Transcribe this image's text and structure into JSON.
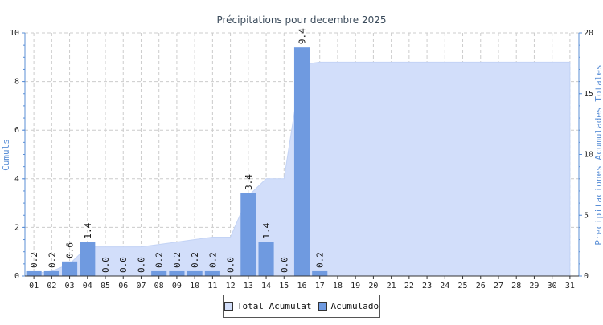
{
  "chart_data": {
    "type": "bar",
    "title": "Précipitations pour decembre 2025",
    "ylabel": "Cumuls",
    "y2label": "Precipitaciones Acumulades Totales",
    "ylim": [
      0,
      10
    ],
    "y2lim": [
      0,
      20
    ],
    "yticks": [
      "0",
      "2",
      "4",
      "6",
      "8",
      "10"
    ],
    "y2ticks": [
      "0",
      "5",
      "10",
      "15",
      "20"
    ],
    "grid": true,
    "legend_position": "bottom",
    "categories": [
      "01",
      "02",
      "03",
      "04",
      "05",
      "06",
      "07",
      "08",
      "09",
      "10",
      "11",
      "12",
      "13",
      "14",
      "15",
      "16",
      "17",
      "18",
      "19",
      "20",
      "21",
      "22",
      "23",
      "24",
      "25",
      "26",
      "27",
      "28",
      "29",
      "30",
      "31"
    ],
    "series": [
      {
        "name": "Acumulado",
        "type": "bar",
        "axis": "left",
        "color": "#6f9ae0",
        "values": [
          0.2,
          0.2,
          0.6,
          1.4,
          0.0,
          0.0,
          0.0,
          0.2,
          0.2,
          0.2,
          0.2,
          0.0,
          3.4,
          1.4,
          0.0,
          9.4,
          0.2,
          null,
          null,
          null,
          null,
          null,
          null,
          null,
          null,
          null,
          null,
          null,
          null,
          null,
          null
        ],
        "labels": [
          "0.2",
          "0.2",
          "0.6",
          "1.4",
          "0.0",
          "0.0",
          "0.0",
          "0.2",
          "0.2",
          "0.2",
          "0.2",
          "0.0",
          "3.4",
          "1.4",
          "0.0",
          "9.4",
          "0.2",
          "",
          "",
          "",
          "",
          "",
          "",
          "",
          "",
          "",
          "",
          "",
          "",
          "",
          ""
        ]
      },
      {
        "name": "Total Acumulat",
        "type": "area",
        "axis": "right",
        "color": "#d2defa",
        "values": [
          0.2,
          0.4,
          1.0,
          2.4,
          2.4,
          2.4,
          2.4,
          2.6,
          2.8,
          3.0,
          3.2,
          3.2,
          6.6,
          8.0,
          8.0,
          17.4,
          17.6,
          17.6,
          17.6,
          17.6,
          17.6,
          17.6,
          17.6,
          17.6,
          17.6,
          17.6,
          17.6,
          17.6,
          17.6,
          17.6,
          17.6
        ]
      }
    ]
  }
}
